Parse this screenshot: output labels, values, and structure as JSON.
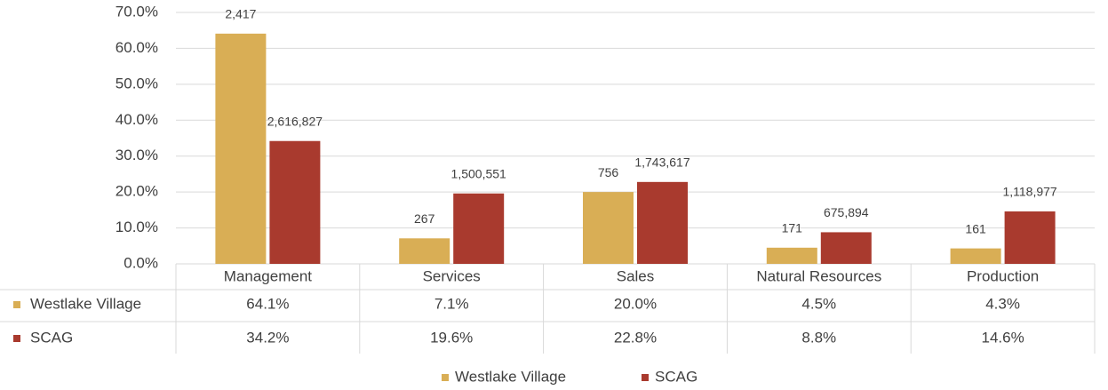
{
  "chart_data": {
    "type": "bar",
    "categories": [
      "Management",
      "Services",
      "Sales",
      "Natural Resources",
      "Production"
    ],
    "series": [
      {
        "name": "Westlake Village",
        "color": "#d9ae55",
        "values": [
          64.1,
          7.1,
          20.0,
          4.5,
          4.3
        ],
        "value_labels": [
          "64.1%",
          "7.1%",
          "20.0%",
          "4.5%",
          "4.3%"
        ],
        "data_labels": [
          "2,417",
          "267",
          "756",
          "171",
          "161"
        ]
      },
      {
        "name": "SCAG",
        "color": "#a93a2e",
        "values": [
          34.2,
          19.6,
          22.8,
          8.8,
          14.6
        ],
        "value_labels": [
          "34.2%",
          "19.6%",
          "22.8%",
          "8.8%",
          "14.6%"
        ],
        "data_labels": [
          "2,616,827",
          "1,500,551",
          "1,743,617",
          "675,894",
          "1,118,977"
        ]
      }
    ],
    "ylim": [
      0,
      70
    ],
    "yticks": [
      {
        "value": 0,
        "label": "0.0%"
      },
      {
        "value": 10,
        "label": "10.0%"
      },
      {
        "value": 20,
        "label": "20.0%"
      },
      {
        "value": 30,
        "label": "30.0%"
      },
      {
        "value": 40,
        "label": "40.0%"
      },
      {
        "value": 50,
        "label": "50.0%"
      },
      {
        "value": 60,
        "label": "60.0%"
      },
      {
        "value": 70,
        "label": "70.0%"
      }
    ],
    "grid": true,
    "legend": "bottom"
  }
}
